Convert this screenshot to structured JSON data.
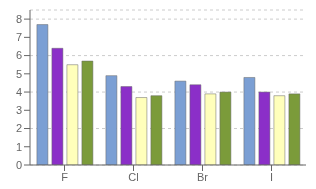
{
  "chart_data": {
    "type": "bar",
    "categories": [
      "F",
      "Cl",
      "Br",
      "I"
    ],
    "series": [
      {
        "color": "#7B9FD4",
        "values": [
          7.7,
          4.9,
          4.6,
          4.8
        ]
      },
      {
        "color": "#8B2FC8",
        "values": [
          6.4,
          4.3,
          4.4,
          4.0
        ]
      },
      {
        "color": "#FFFFBB",
        "values": [
          5.5,
          3.7,
          3.9,
          3.8
        ]
      },
      {
        "color": "#7B9B3A",
        "values": [
          5.7,
          3.8,
          4.0,
          3.9
        ]
      }
    ],
    "ylim": [
      0,
      8.5
    ],
    "yticks": [
      0,
      1,
      2,
      3,
      4,
      5,
      6,
      7,
      8
    ],
    "grid": true
  }
}
